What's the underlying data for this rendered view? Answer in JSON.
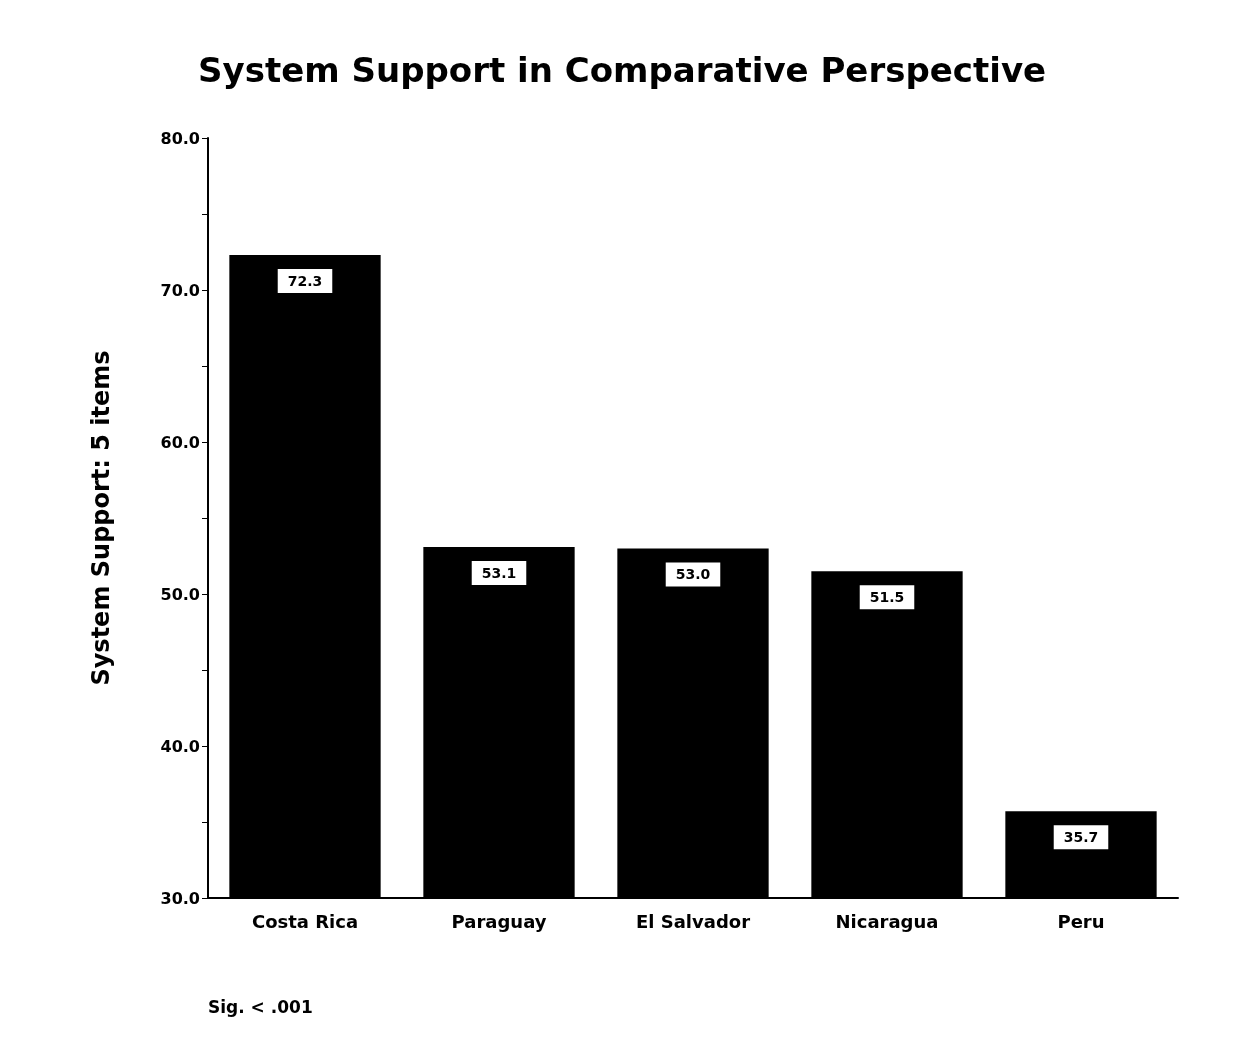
{
  "chart_data": {
    "type": "bar",
    "title": "System Support in Comparative Perspective",
    "ylabel": "System Support: 5 items",
    "categories": [
      "Costa Rica",
      "Paraguay",
      "El Salvador",
      "Nicaragua",
      "Peru"
    ],
    "values": [
      72.3,
      53.1,
      53.0,
      51.5,
      35.7
    ],
    "value_labels": [
      "72.3",
      "53.1",
      "53.0",
      "51.5",
      "35.7"
    ],
    "color": "#000000",
    "ylim": [
      30,
      80
    ],
    "yticks": [
      {
        "value": 30,
        "label": "30.0"
      },
      {
        "value": 35,
        "label": null
      },
      {
        "value": 40,
        "label": "40.0"
      },
      {
        "value": 45,
        "label": null
      },
      {
        "value": 50,
        "label": "50.0"
      },
      {
        "value": 55,
        "label": null
      },
      {
        "value": 60,
        "label": "60.0"
      },
      {
        "value": 65,
        "label": null
      },
      {
        "value": 70,
        "label": "70.0"
      },
      {
        "value": 75,
        "label": null
      },
      {
        "value": 80,
        "label": "80.0"
      }
    ],
    "grid": false,
    "annotations": [
      "Sig. < .001"
    ]
  }
}
